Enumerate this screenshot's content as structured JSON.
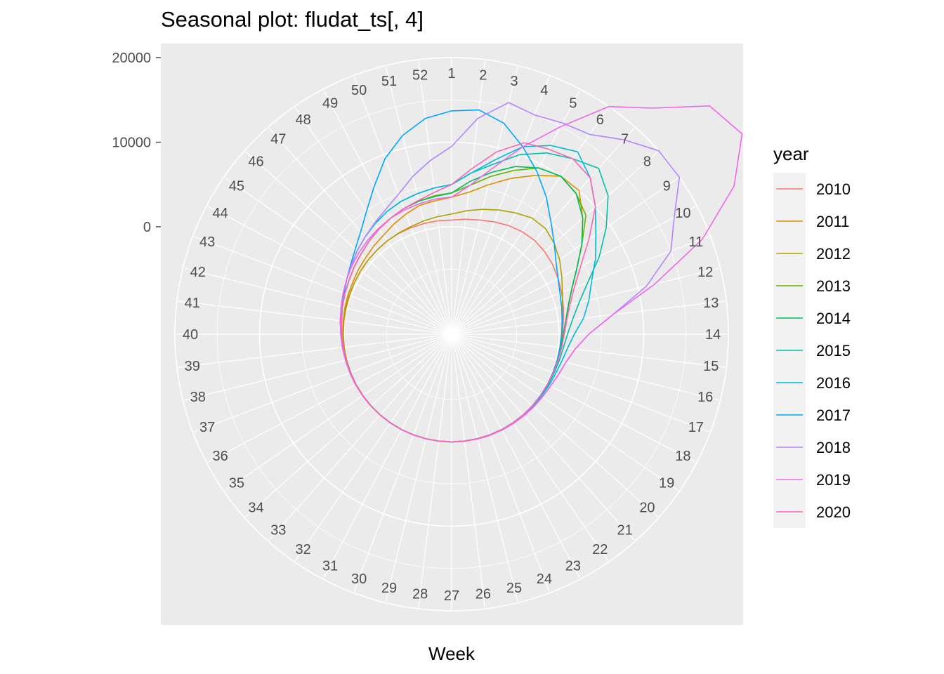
{
  "title": "Seasonal plot: fludat_ts[, 4]",
  "chart_data": {
    "type": "line",
    "coord": "polar",
    "title": "Seasonal plot: fludat_ts[, 4]",
    "xlabel": "Week",
    "ylabel": "",
    "x": [
      1,
      2,
      3,
      4,
      5,
      6,
      7,
      8,
      9,
      10,
      11,
      12,
      13,
      14,
      15,
      16,
      17,
      18,
      19,
      20,
      21,
      22,
      23,
      24,
      25,
      26,
      27,
      28,
      29,
      30,
      31,
      32,
      33,
      34,
      35,
      36,
      37,
      38,
      39,
      40,
      41,
      42,
      43,
      44,
      45,
      46,
      47,
      48,
      49,
      50,
      51,
      52
    ],
    "angle_ticks": [
      "1",
      "2",
      "3",
      "4",
      "5",
      "6",
      "7",
      "8",
      "9",
      "10",
      "11",
      "12",
      "13",
      "14",
      "15",
      "16",
      "17",
      "18",
      "19",
      "20",
      "21",
      "22",
      "23",
      "24",
      "25",
      "26",
      "27",
      "28",
      "29",
      "30",
      "31",
      "32",
      "33",
      "34",
      "35",
      "36",
      "37",
      "38",
      "39",
      "40",
      "41",
      "42",
      "43",
      "44",
      "45",
      "46",
      "47",
      "48",
      "49",
      "50",
      "51",
      "52"
    ],
    "y_ticks": [
      0,
      10000,
      20000
    ],
    "y_tick_labels": [
      "0",
      "10000",
      "20000"
    ],
    "ylim": [
      -10000,
      30000
    ],
    "grid": true,
    "legend_title": "year",
    "legend_position": "right",
    "series": [
      {
        "name": "2010",
        "color": "#F8766D",
        "values": [
          800,
          1000,
          1200,
          1500,
          1800,
          2000,
          2100,
          2000,
          1800,
          1500,
          1200,
          900,
          600,
          400,
          300,
          200,
          150,
          120,
          100,
          80,
          60,
          50,
          40,
          30,
          30,
          30,
          30,
          30,
          30,
          30,
          30,
          30,
          40,
          40,
          50,
          50,
          60,
          70,
          80,
          100,
          120,
          150,
          200,
          300,
          400,
          500,
          600,
          700,
          750,
          780,
          790,
          800
        ]
      },
      {
        "name": "2011",
        "color": "#DB8E00",
        "values": [
          3500,
          4200,
          5500,
          7000,
          8500,
          10000,
          10000,
          8000,
          6000,
          4000,
          2500,
          1500,
          1000,
          600,
          400,
          250,
          150,
          100,
          80,
          60,
          50,
          40,
          40,
          30,
          30,
          30,
          30,
          30,
          30,
          30,
          30,
          40,
          40,
          50,
          60,
          70,
          80,
          100,
          120,
          150,
          200,
          300,
          400,
          500,
          700,
          900,
          1200,
          1500,
          2000,
          2500,
          3000,
          3200
        ]
      },
      {
        "name": "2012",
        "color": "#AEA200",
        "values": [
          1500,
          2000,
          2500,
          3000,
          3500,
          4000,
          4000,
          3500,
          2800,
          2000,
          1300,
          800,
          500,
          300,
          200,
          150,
          100,
          80,
          60,
          50,
          40,
          40,
          30,
          30,
          30,
          30,
          30,
          30,
          30,
          30,
          30,
          30,
          40,
          40,
          50,
          60,
          70,
          80,
          100,
          120,
          150,
          200,
          250,
          300,
          400,
          500,
          600,
          700,
          800,
          900,
          1100,
          1300
        ]
      },
      {
        "name": "2013",
        "color": "#64B200",
        "values": [
          4000,
          5000,
          6500,
          8000,
          9500,
          10000,
          9500,
          8500,
          6000,
          4000,
          2500,
          1500,
          900,
          500,
          300,
          200,
          150,
          100,
          80,
          60,
          50,
          40,
          40,
          30,
          30,
          30,
          30,
          30,
          30,
          30,
          30,
          30,
          40,
          50,
          60,
          80,
          100,
          150,
          200,
          300,
          400,
          600,
          800,
          1000,
          1300,
          1600,
          2000,
          2400,
          2800,
          3200,
          3500,
          3800
        ]
      },
      {
        "name": "2014",
        "color": "#00BD5C",
        "values": [
          4000,
          5500,
          7000,
          8500,
          9500,
          10000,
          9500,
          8000,
          6000,
          4000,
          2500,
          1500,
          900,
          500,
          300,
          200,
          150,
          100,
          80,
          60,
          50,
          40,
          40,
          30,
          30,
          30,
          30,
          30,
          30,
          30,
          30,
          30,
          40,
          50,
          60,
          80,
          100,
          150,
          200,
          300,
          400,
          600,
          800,
          1000,
          1300,
          1600,
          2000,
          2400,
          2800,
          3200,
          3500,
          3700
        ]
      },
      {
        "name": "2015",
        "color": "#00C1A7",
        "values": [
          5000,
          6500,
          8000,
          10000,
          11500,
          12500,
          13500,
          12000,
          9500,
          7000,
          4500,
          2800,
          1700,
          1000,
          600,
          400,
          250,
          180,
          130,
          100,
          80,
          60,
          50,
          40,
          40,
          40,
          40,
          40,
          40,
          40,
          40,
          50,
          60,
          70,
          90,
          120,
          160,
          220,
          300,
          400,
          550,
          750,
          1000,
          1300,
          1700,
          2200,
          2700,
          3200,
          3700,
          4100,
          4400,
          4700
        ]
      },
      {
        "name": "2016",
        "color": "#00BADE",
        "values": [
          5000,
          6500,
          8500,
          11000,
          12500,
          13500,
          12000,
          10000,
          8000,
          6500,
          5000,
          4000,
          3000,
          1800,
          1100,
          700,
          450,
          300,
          200,
          150,
          100,
          80,
          60,
          50,
          40,
          40,
          40,
          40,
          40,
          40,
          40,
          50,
          60,
          70,
          90,
          120,
          160,
          220,
          300,
          400,
          550,
          750,
          1000,
          1300,
          1700,
          2200,
          2700,
          3200,
          3700,
          4100,
          4400,
          4700
        ]
      },
      {
        "name": "2017",
        "color": "#00A6FF",
        "values": [
          13700,
          14000,
          13000,
          11000,
          9000,
          7000,
          5000,
          3500,
          2300,
          1500,
          1000,
          700,
          450,
          300,
          200,
          150,
          100,
          80,
          60,
          50,
          40,
          40,
          30,
          30,
          30,
          30,
          30,
          30,
          30,
          30,
          30,
          40,
          40,
          50,
          60,
          80,
          100,
          150,
          200,
          300,
          450,
          650,
          900,
          1300,
          1800,
          2500,
          3500,
          5000,
          7000,
          9500,
          11500,
          13000
        ]
      },
      {
        "name": "2018",
        "color": "#B385FF",
        "values": [
          9500,
          13000,
          15500,
          15000,
          15500,
          16000,
          18000,
          20000,
          20000,
          17000,
          15000,
          11000,
          6500,
          3500,
          2000,
          1200,
          800,
          500,
          350,
          250,
          180,
          130,
          100,
          80,
          60,
          50,
          40,
          40,
          40,
          40,
          40,
          50,
          60,
          70,
          90,
          120,
          160,
          220,
          300,
          400,
          550,
          750,
          1000,
          1300,
          1700,
          2200,
          2700,
          3300,
          4000,
          5000,
          6500,
          8000
        ]
      },
      {
        "name": "2019",
        "color": "#EF67EB",
        "values": [
          3500,
          5000,
          7500,
          11000,
          15000,
          20000,
          23000,
          28000,
          29000,
          25000,
          19000,
          12000,
          6500,
          3500,
          2000,
          1200,
          800,
          500,
          350,
          250,
          180,
          130,
          100,
          80,
          60,
          50,
          40,
          40,
          40,
          40,
          40,
          50,
          60,
          70,
          90,
          120,
          160,
          220,
          300,
          400,
          550,
          750,
          1000,
          1300,
          1600,
          1900,
          2200,
          2500,
          2800,
          3000,
          3200,
          3400
        ]
      },
      {
        "name": "2020",
        "color": "#FF63B6",
        "values": [
          5000,
          7000,
          9500,
          11500,
          12000,
          12500,
          12000,
          10000,
          7000,
          4500,
          2800,
          1700,
          1000,
          600,
          400,
          250,
          150,
          100,
          80,
          60,
          50,
          40,
          40,
          30,
          30,
          30,
          30,
          30,
          30,
          30,
          30,
          40,
          40,
          50,
          60,
          80,
          100,
          150,
          200,
          300,
          400,
          600,
          800,
          1000,
          1300,
          1600,
          2000,
          2400,
          2800,
          3200,
          3600,
          4200
        ]
      }
    ]
  }
}
